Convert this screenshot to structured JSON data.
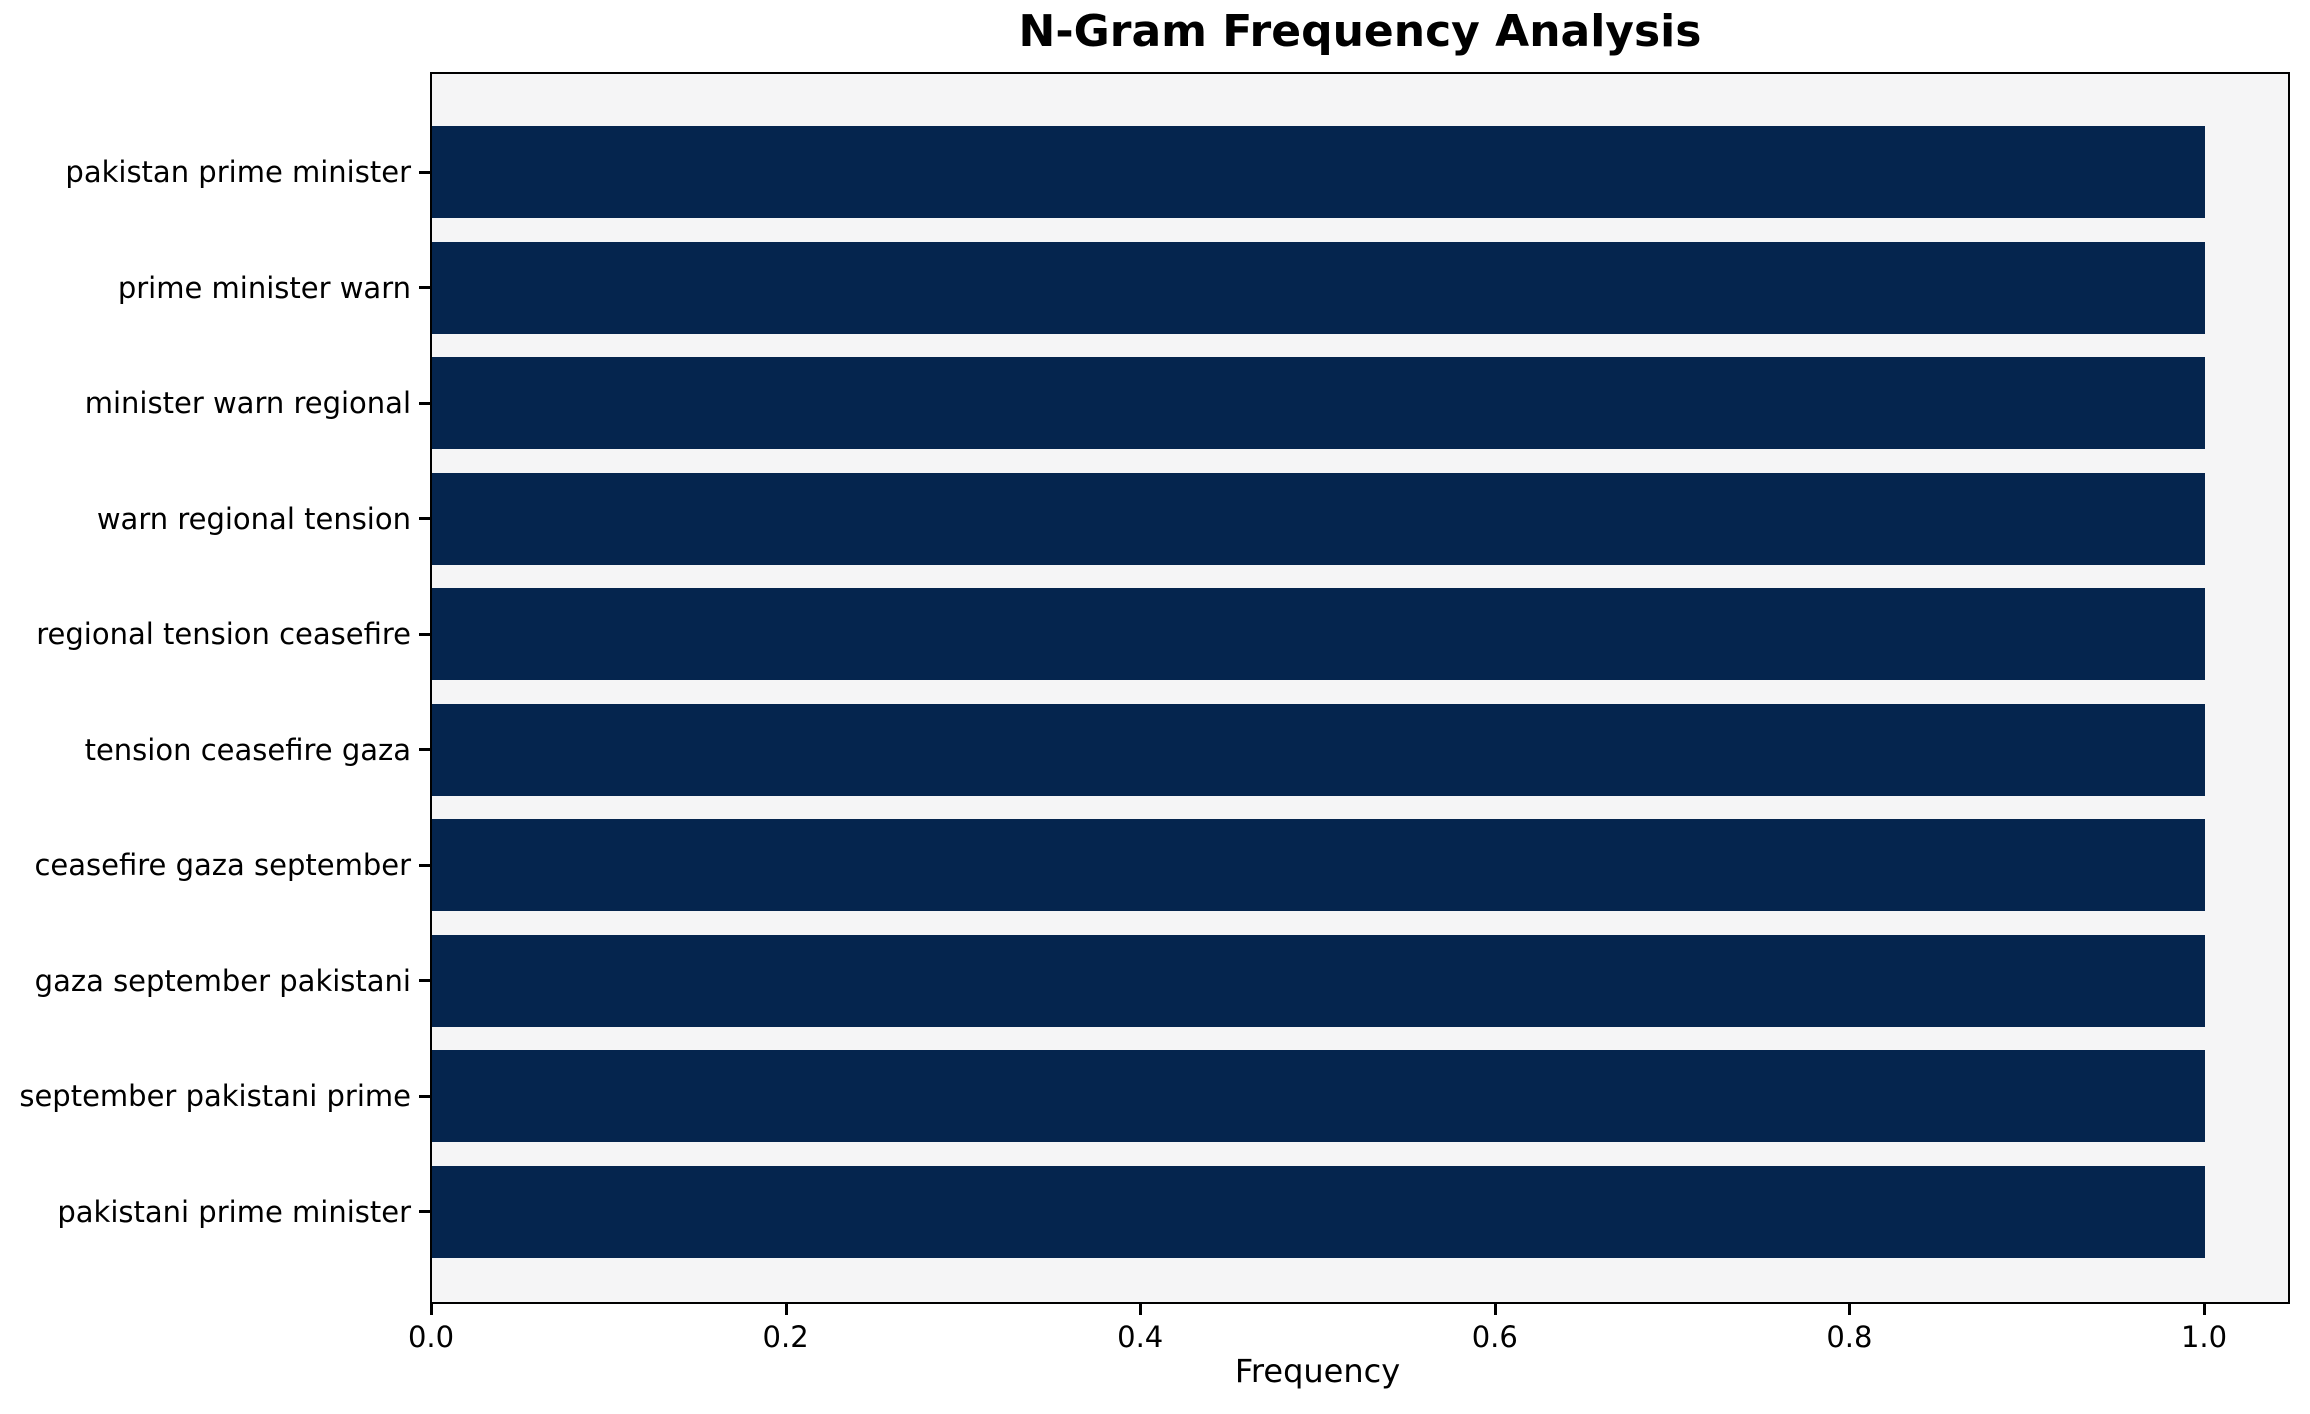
{
  "chart_data": {
    "type": "bar",
    "orientation": "horizontal",
    "title": "N-Gram Frequency Analysis",
    "xlabel": "Frequency",
    "ylabel": "",
    "categories": [
      "pakistan prime minister",
      "prime minister warn",
      "minister warn regional",
      "warn regional tension",
      "regional tension ceasefire",
      "tension ceasefire gaza",
      "ceasefire gaza september",
      "gaza september pakistani",
      "september pakistani prime",
      "pakistani prime minister"
    ],
    "values": [
      1.0,
      1.0,
      1.0,
      1.0,
      1.0,
      1.0,
      1.0,
      1.0,
      1.0,
      1.0
    ],
    "xticks": [
      0.0,
      0.2,
      0.4,
      0.6,
      0.8,
      1.0
    ],
    "xtick_labels": [
      "0.0",
      "0.2",
      "0.4",
      "0.6",
      "0.8",
      "1.0"
    ],
    "xlim": [
      0,
      1.05
    ],
    "grid": false,
    "legend": false,
    "colors": {
      "bar": "#05254e",
      "plot_bg": "#f5f5f6",
      "figure_bg": "#ffffff",
      "spine": "#000000",
      "text": "#000000"
    }
  }
}
